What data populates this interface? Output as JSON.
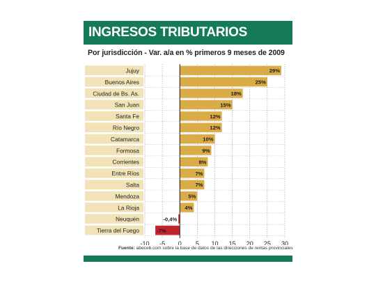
{
  "header": {
    "title": "INGRESOS TRIBUTARIOS",
    "subtitle": "Por jurisdicción - Var. a/a en % primeros 9 meses de 2009"
  },
  "source": {
    "label": "Fuente:",
    "text": "abeceb.com sobre la base de datos de las direcciones de rentas provinciales"
  },
  "colors": {
    "brand": "#157a5a",
    "positive_bar": "#d9ac48",
    "negative_bar": "#c2242b",
    "label_bg": "#f1e2b7"
  },
  "chart_data": {
    "type": "bar",
    "orientation": "horizontal",
    "categories": [
      "Jujuy",
      "Buenos Aires",
      "Ciudad de Bs. As.",
      "San Juan",
      "Santa Fe",
      "Río Negro",
      "Catamarca",
      "Formosa",
      "Corrientes",
      "Entre Ríos",
      "Salta",
      "Mendoza",
      "La Rioja",
      "Neuquén",
      "Tierra del Fuego"
    ],
    "values": [
      29,
      25,
      18,
      15,
      12,
      12,
      10,
      9,
      8,
      7,
      7,
      5,
      4,
      -0.4,
      -7
    ],
    "value_labels": [
      "29%",
      "25%",
      "18%",
      "15%",
      "12%",
      "12%",
      "10%",
      "9%",
      "8%",
      "7%",
      "7%",
      "5%",
      "4%",
      "-0,4%",
      "-7%"
    ],
    "xlim": [
      -10,
      30
    ],
    "xticks": [
      -10,
      -5,
      0,
      5,
      10,
      15,
      20,
      25,
      30
    ],
    "xtick_labels": [
      "-10",
      "-5",
      "0",
      "5",
      "10",
      "15",
      "20",
      "25",
      "30"
    ],
    "grid": "vertical dashed"
  }
}
